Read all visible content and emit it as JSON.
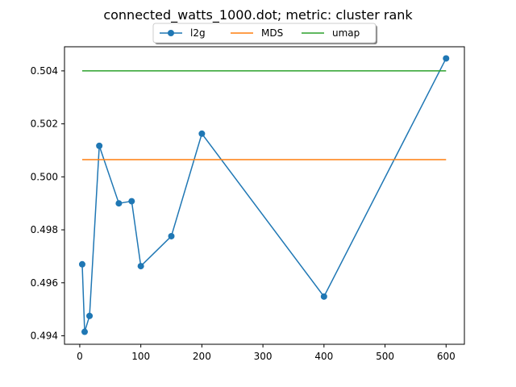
{
  "chart_data": {
    "type": "line",
    "title": "connected_watts_1000.dot; metric: cluster rank",
    "xlabel": "",
    "ylabel": "",
    "xlim": [
      -25,
      630
    ],
    "ylim": [
      0.49368,
      0.50491
    ],
    "xticks": [
      0,
      100,
      200,
      300,
      400,
      500,
      600
    ],
    "yticks": [
      0.494,
      0.496,
      0.498,
      0.5,
      0.502,
      0.504
    ],
    "grid": false,
    "legend": "top-center",
    "series": [
      {
        "name": "l2g",
        "color": "#1f77b4",
        "marker": "circle",
        "x": [
          4,
          8,
          16,
          32,
          64,
          85,
          100,
          150,
          200,
          400,
          600
        ],
        "y": [
          0.4967,
          0.49415,
          0.49475,
          0.50117,
          0.499,
          0.49908,
          0.49663,
          0.49776,
          0.50163,
          0.49548,
          0.50447
        ]
      },
      {
        "name": "MDS",
        "color": "#ff7f0e",
        "marker": "none",
        "x": [
          4,
          600
        ],
        "y": [
          0.50065,
          0.50065
        ]
      },
      {
        "name": "umap",
        "color": "#2ca02c",
        "marker": "none",
        "x": [
          4,
          600
        ],
        "y": [
          0.504,
          0.504
        ]
      }
    ]
  }
}
